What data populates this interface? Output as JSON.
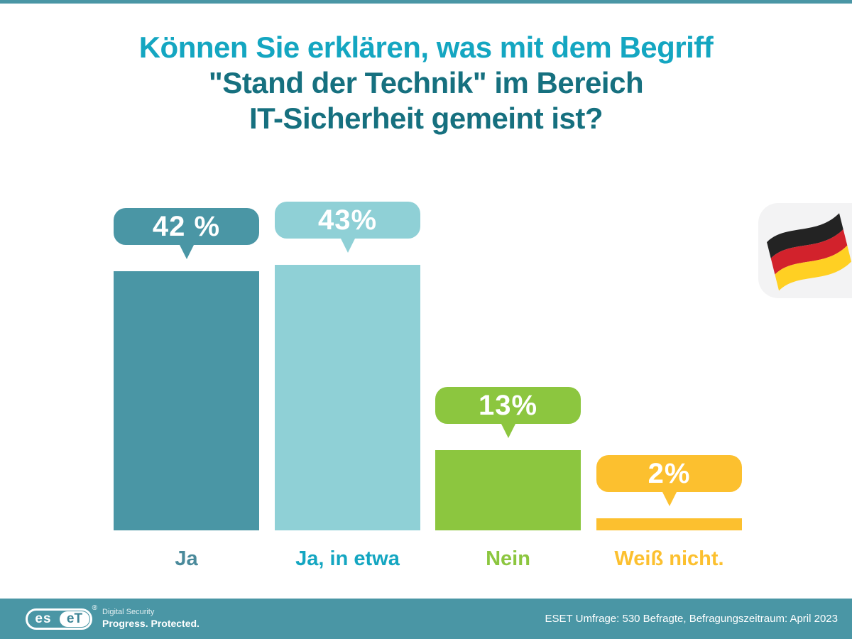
{
  "title": {
    "line1": "Können Sie erklären, was mit dem Begriff",
    "line2": "\"Stand der Technik\" im Bereich",
    "line3": "IT-Sicherheit gemeint ist?"
  },
  "chart_data": {
    "type": "bar",
    "title": "Können Sie erklären, was mit dem Begriff \"Stand der Technik\" im Bereich IT-Sicherheit gemeint ist?",
    "categories": [
      "Ja",
      "Ja, in etwa",
      "Nein",
      "Weiß nicht."
    ],
    "values": [
      42,
      43,
      13,
      2
    ],
    "value_labels": [
      "42 %",
      "43%",
      "13%",
      "2%"
    ],
    "unit": "%",
    "bar_colors": [
      "#4A96A5",
      "#8FD0D6",
      "#8CC63F",
      "#FCC02F"
    ],
    "category_label_colors": [
      "#4A8A9B",
      "#14A6C1",
      "#8CC63F",
      "#FCC02F"
    ],
    "ylim": [
      0,
      50
    ],
    "grid": false,
    "legend": false,
    "annotation": "german-flag-emoji"
  },
  "flag": {
    "black": "#232323",
    "red": "#D2222C",
    "gold": "#FFD023",
    "card_bg": "#F3F3F4"
  },
  "footer": {
    "logo_left": "es",
    "logo_right": "eT",
    "registered": "®",
    "tagline_line1": "Digital Security",
    "tagline_line2": "Progress. Protected.",
    "source": "ESET Umfrage: 530 Befragte, Befragungszeitraum: April 2023"
  },
  "colors": {
    "accent_teal": "#4A96A5",
    "title_cyan": "#14A6C1",
    "title_dark_teal": "#16707F"
  }
}
